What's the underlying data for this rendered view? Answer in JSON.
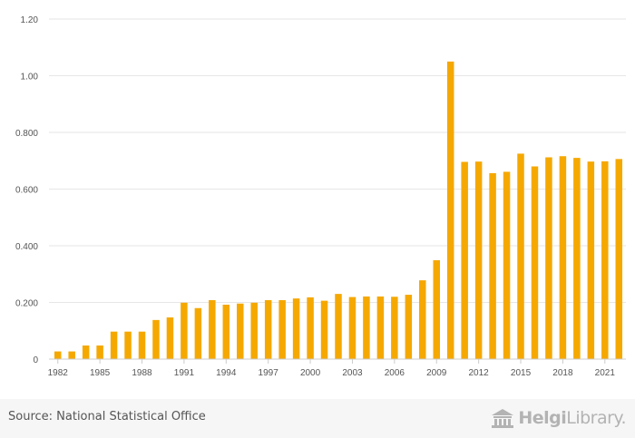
{
  "chart_data": {
    "type": "bar",
    "categories": [
      "1982",
      "1983",
      "1984",
      "1985",
      "1986",
      "1987",
      "1988",
      "1989",
      "1990",
      "1991",
      "1992",
      "1993",
      "1994",
      "1995",
      "1996",
      "1997",
      "1998",
      "1999",
      "2000",
      "2001",
      "2002",
      "2003",
      "2004",
      "2005",
      "2006",
      "2007",
      "2008",
      "2009",
      "2010",
      "2011",
      "2012",
      "2013",
      "2014",
      "2015",
      "2016",
      "2017",
      "2018",
      "2019",
      "2020",
      "2021",
      "2022"
    ],
    "values": [
      0.027,
      0.027,
      0.048,
      0.048,
      0.097,
      0.097,
      0.097,
      0.138,
      0.147,
      0.199,
      0.18,
      0.208,
      0.192,
      0.196,
      0.199,
      0.208,
      0.208,
      0.214,
      0.218,
      0.206,
      0.23,
      0.219,
      0.221,
      0.221,
      0.22,
      0.227,
      0.278,
      0.349,
      1.05,
      0.696,
      0.697,
      0.656,
      0.661,
      0.725,
      0.68,
      0.712,
      0.716,
      0.71,
      0.697,
      0.698,
      0.706
    ],
    "xtick_labels": [
      "1982",
      "1985",
      "1988",
      "1991",
      "1994",
      "1997",
      "2000",
      "2003",
      "2006",
      "2009",
      "2012",
      "2015",
      "2018",
      "2021"
    ],
    "yticks": [
      {
        "value": 0,
        "label": "0"
      },
      {
        "value": 0.2,
        "label": "0.200"
      },
      {
        "value": 0.4,
        "label": "0.400"
      },
      {
        "value": 0.6,
        "label": "0.600"
      },
      {
        "value": 0.8,
        "label": "0.800"
      },
      {
        "value": 1.0,
        "label": "1.00"
      },
      {
        "value": 1.2,
        "label": "1.20"
      }
    ],
    "ylim": [
      0,
      1.2
    ],
    "grid": true,
    "bar_color": "#f5a800",
    "title": "",
    "xlabel": "",
    "ylabel": ""
  },
  "footer": {
    "source": "Source: National Statistical Office",
    "logo_bold": "Helgi",
    "logo_light": "Library."
  }
}
